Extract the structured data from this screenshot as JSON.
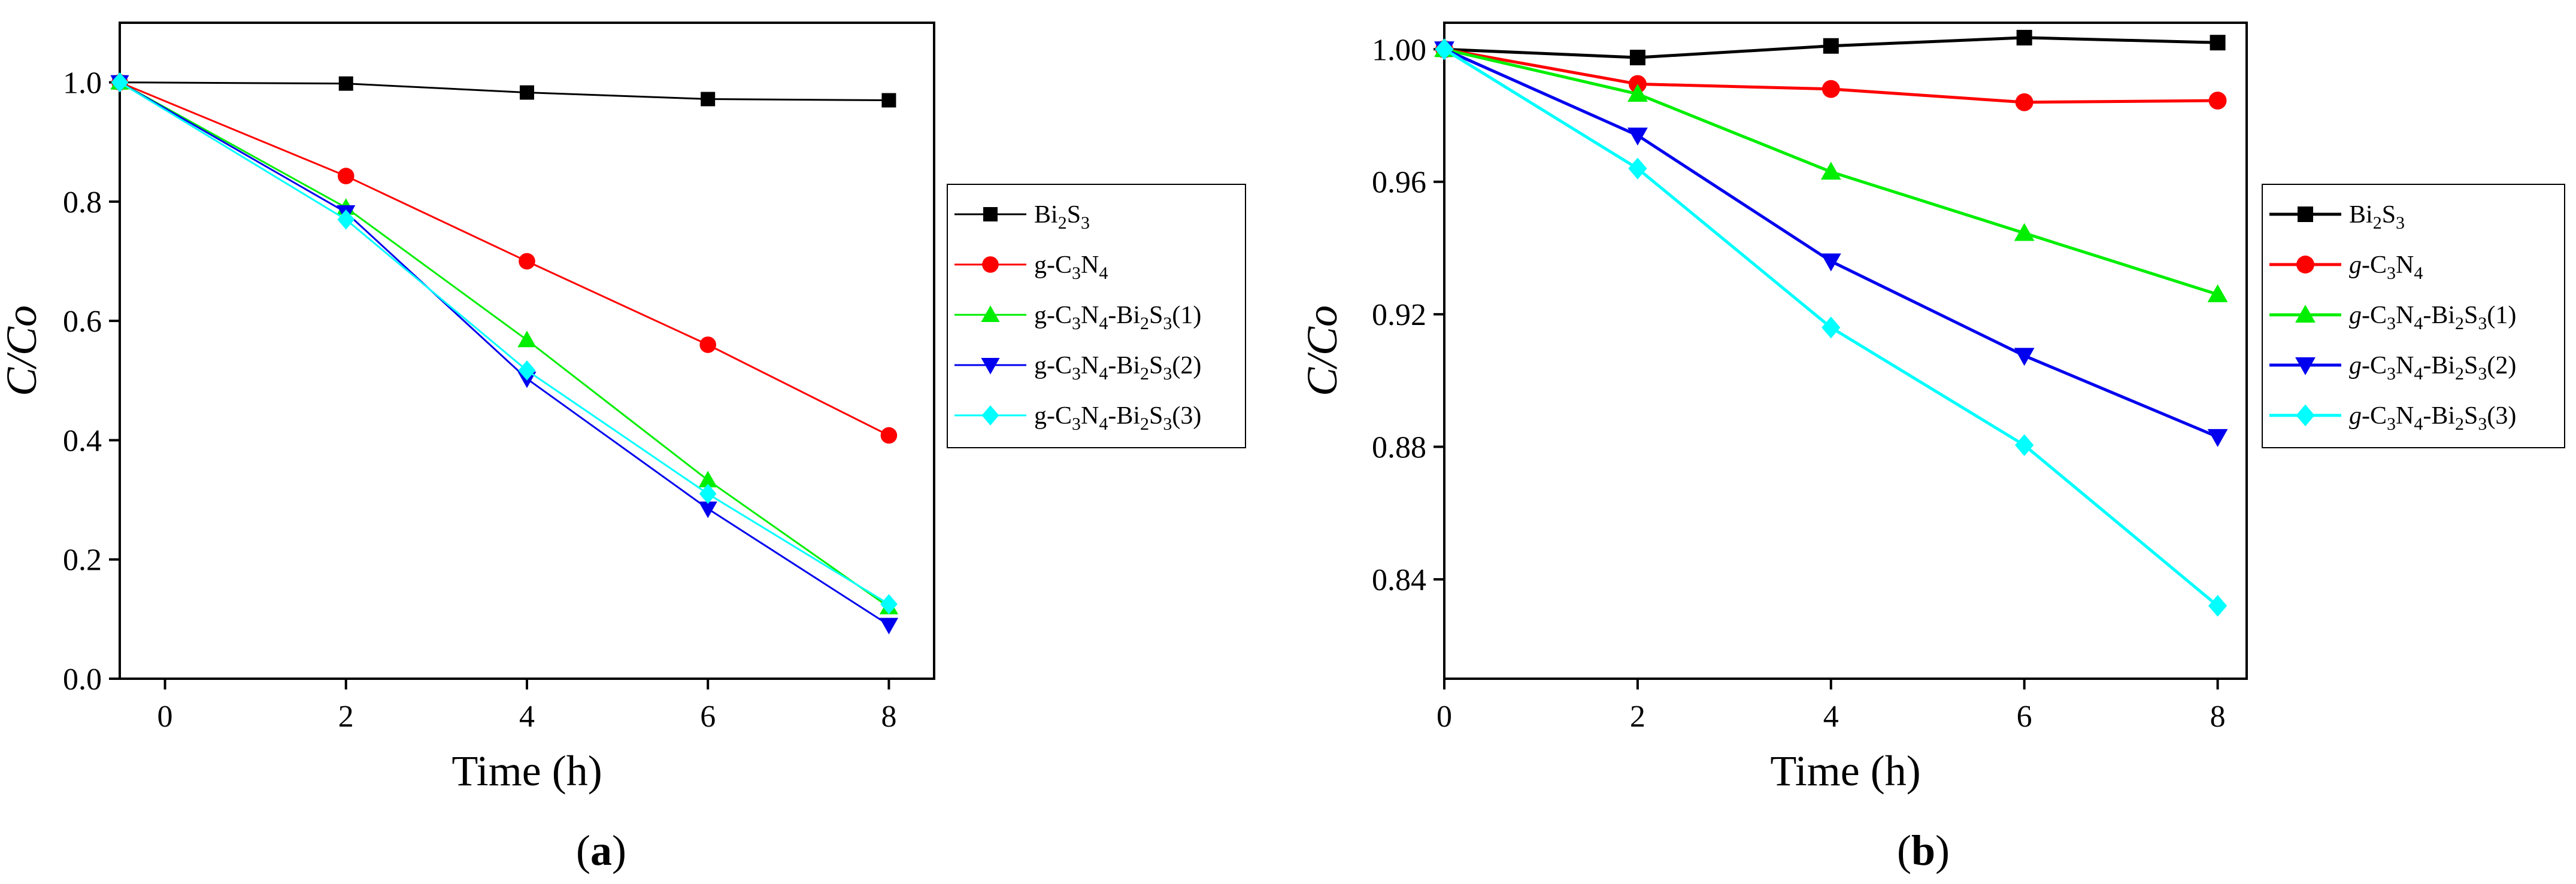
{
  "chart_data": [
    {
      "type": "line",
      "panel_label": "(a)",
      "xlabel": "Time (h)",
      "ylabel": "C/Co",
      "xlim": [
        -0.5,
        8.5
      ],
      "ylim": [
        0.0,
        1.1
      ],
      "xticks": [
        0,
        2,
        4,
        6,
        8
      ],
      "yticks": [
        0.0,
        0.2,
        0.4,
        0.6,
        0.8,
        1.0
      ],
      "ytick_labels": [
        "0.0",
        "0.2",
        "0.4",
        "0.6",
        "0.8",
        "1.0"
      ],
      "x": [
        -0.5,
        2,
        4,
        6,
        8
      ],
      "legend_position": "outside-right",
      "series": [
        {
          "name": "Bi2S3",
          "color": "#000000",
          "marker": "square",
          "values": [
            1.0,
            0.998,
            0.983,
            0.972,
            0.97
          ]
        },
        {
          "name": "g-C3N4",
          "color": "#ff0000",
          "marker": "circle",
          "values": [
            1.0,
            0.843,
            0.7,
            0.56,
            0.408
          ]
        },
        {
          "name": "g-C3N4-Bi2S3(1)",
          "color": "#00ee00",
          "marker": "triangle-up",
          "values": [
            1.0,
            0.79,
            0.568,
            0.333,
            0.12
          ]
        },
        {
          "name": "g-C3N4-Bi2S3(2)",
          "color": "#0000ee",
          "marker": "triangle-down",
          "values": [
            1.0,
            0.782,
            0.503,
            0.285,
            0.09
          ]
        },
        {
          "name": "g-C3N4-Bi2S3(3)",
          "color": "#00ffff",
          "marker": "diamond",
          "values": [
            1.0,
            0.77,
            0.517,
            0.31,
            0.125
          ]
        }
      ]
    },
    {
      "type": "line",
      "panel_label": "(b)",
      "xlabel": "Time (h)",
      "ylabel": "C/Co",
      "xlim": [
        0,
        8.3
      ],
      "ylim": [
        0.81,
        1.008
      ],
      "xticks": [
        0,
        2,
        4,
        6,
        8
      ],
      "yticks": [
        0.84,
        0.88,
        0.92,
        0.96,
        1.0
      ],
      "ytick_labels": [
        "0.84",
        "0.88",
        "0.92",
        "0.96",
        "1.00"
      ],
      "x": [
        0,
        2,
        4,
        6,
        8
      ],
      "legend_position": "outside-right",
      "series": [
        {
          "name": "Bi2S3",
          "color": "#000000",
          "marker": "square",
          "values": [
            1.0,
            0.9975,
            1.001,
            1.0035,
            1.002
          ]
        },
        {
          "name": "g-C3N4",
          "color": "#ff0000",
          "marker": "circle",
          "values": [
            1.0,
            0.9895,
            0.988,
            0.984,
            0.9845
          ]
        },
        {
          "name": "g-C3N4-Bi2S3(1)",
          "color": "#00ee00",
          "marker": "triangle-up",
          "values": [
            1.0,
            0.9865,
            0.963,
            0.9445,
            0.926
          ]
        },
        {
          "name": "g-C3N4-Bi2S3(2)",
          "color": "#0000ee",
          "marker": "triangle-down",
          "values": [
            1.0,
            0.974,
            0.936,
            0.9075,
            0.883
          ]
        },
        {
          "name": "g-C3N4-Bi2S3(3)",
          "color": "#00ffff",
          "marker": "diamond",
          "values": [
            1.0,
            0.964,
            0.916,
            0.8805,
            0.832
          ]
        }
      ]
    }
  ]
}
